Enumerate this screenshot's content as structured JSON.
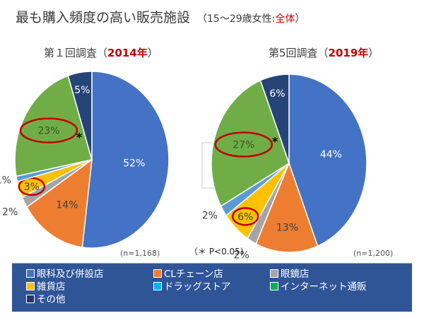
{
  "header": {
    "title": "最も購入頻度の高い販売施設",
    "subtitle_prefix": "（15～29歳女性:",
    "subtitle_highlight": "全体",
    "subtitle_suffix": "）"
  },
  "significance_note": "（＊ P<0.05)",
  "colors": {
    "眼科及び併設店": "#4472c4",
    "CLチェーン店": "#ed7d31",
    "眼鏡店": "#a5a5a5",
    "雑貨店": "#ffc000",
    "ドラッグストア": "#5b9bd5",
    "インターネット通販": "#70ad47",
    "その他": "#264478",
    "highlight_ring": "#c00000",
    "legend_bg": "#2f5597"
  },
  "chart_data": [
    {
      "type": "pie",
      "title_prefix": "第１回調査（",
      "title_year": "2014年",
      "title_suffix": "）",
      "sample_size": "(n=1,168)",
      "categories": [
        "眼科及び併設店",
        "CLチェーン店",
        "眼鏡店",
        "雑貨店",
        "ドラッグストア",
        "インターネット通販",
        "その他"
      ],
      "values": [
        52,
        14,
        2,
        3,
        1,
        23,
        5
      ],
      "labels": [
        "52%",
        "14%",
        "2%",
        "3%",
        "1%",
        "23%",
        "5%"
      ],
      "highlighted": [
        "雑貨店",
        "インターネット通販"
      ],
      "significant_marker": {
        "category": "インターネット通販",
        "symbol": "*"
      }
    },
    {
      "type": "pie",
      "title_prefix": "第5回調査（",
      "title_year": "2019年",
      "title_suffix": "）",
      "sample_size": "(n=1,200)",
      "categories": [
        "眼科及び併設店",
        "CLチェーン店",
        "眼鏡店",
        "雑貨店",
        "ドラッグストア",
        "インターネット通販",
        "その他"
      ],
      "values": [
        44,
        13,
        2,
        6,
        2,
        27,
        6
      ],
      "labels": [
        "44%",
        "13%",
        "2%",
        "6%",
        "2%",
        "27%",
        "6%"
      ],
      "highlighted": [
        "雑貨店",
        "インターネット通販"
      ],
      "significant_marker": {
        "category": "インターネット通販",
        "symbol": "*"
      }
    }
  ],
  "legend": {
    "items": [
      {
        "label": "眼科及び併設店",
        "color": "#4472c4"
      },
      {
        "label": "CLチェーン店",
        "color": "#ed7d31"
      },
      {
        "label": "眼鏡店",
        "color": "#a5a5a5"
      },
      {
        "label": "雑貨店",
        "color": "#ffc000"
      },
      {
        "label": "ドラッグストア",
        "color": "#00b0f0"
      },
      {
        "label": "インターネット通販",
        "color": "#00b050"
      },
      {
        "label": "その他",
        "color": "#1f3864"
      }
    ]
  }
}
